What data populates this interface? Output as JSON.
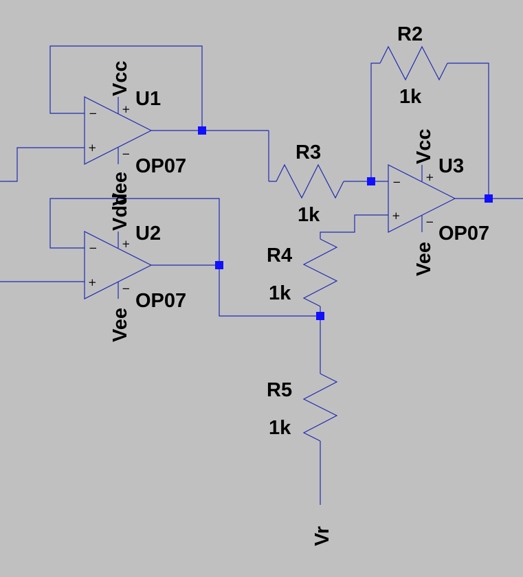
{
  "colors": {
    "background": "#c0c0c0",
    "wire": "#1f2bb3",
    "junction": "#1010ff",
    "text": "#000000"
  },
  "opamps": [
    {
      "id": "u1",
      "ref": "U1",
      "model": "OP07",
      "pos_supply": "Vcc",
      "neg_supply": "Vee"
    },
    {
      "id": "u2",
      "ref": "U2",
      "model": "OP07",
      "pos_supply": "Vdd",
      "neg_supply": "Vee"
    },
    {
      "id": "u3",
      "ref": "U3",
      "model": "OP07",
      "pos_supply": "Vcc",
      "neg_supply": "Vee"
    }
  ],
  "resistors": [
    {
      "id": "r2",
      "ref": "R2",
      "value": "1k"
    },
    {
      "id": "r3",
      "ref": "R3",
      "value": "1k"
    },
    {
      "id": "r4",
      "ref": "R4",
      "value": "1k"
    },
    {
      "id": "r5",
      "ref": "R5",
      "value": "1k"
    }
  ],
  "nets": {
    "ref_node": "Vr"
  },
  "pin_signs": {
    "plus": "+",
    "minus": "−"
  }
}
